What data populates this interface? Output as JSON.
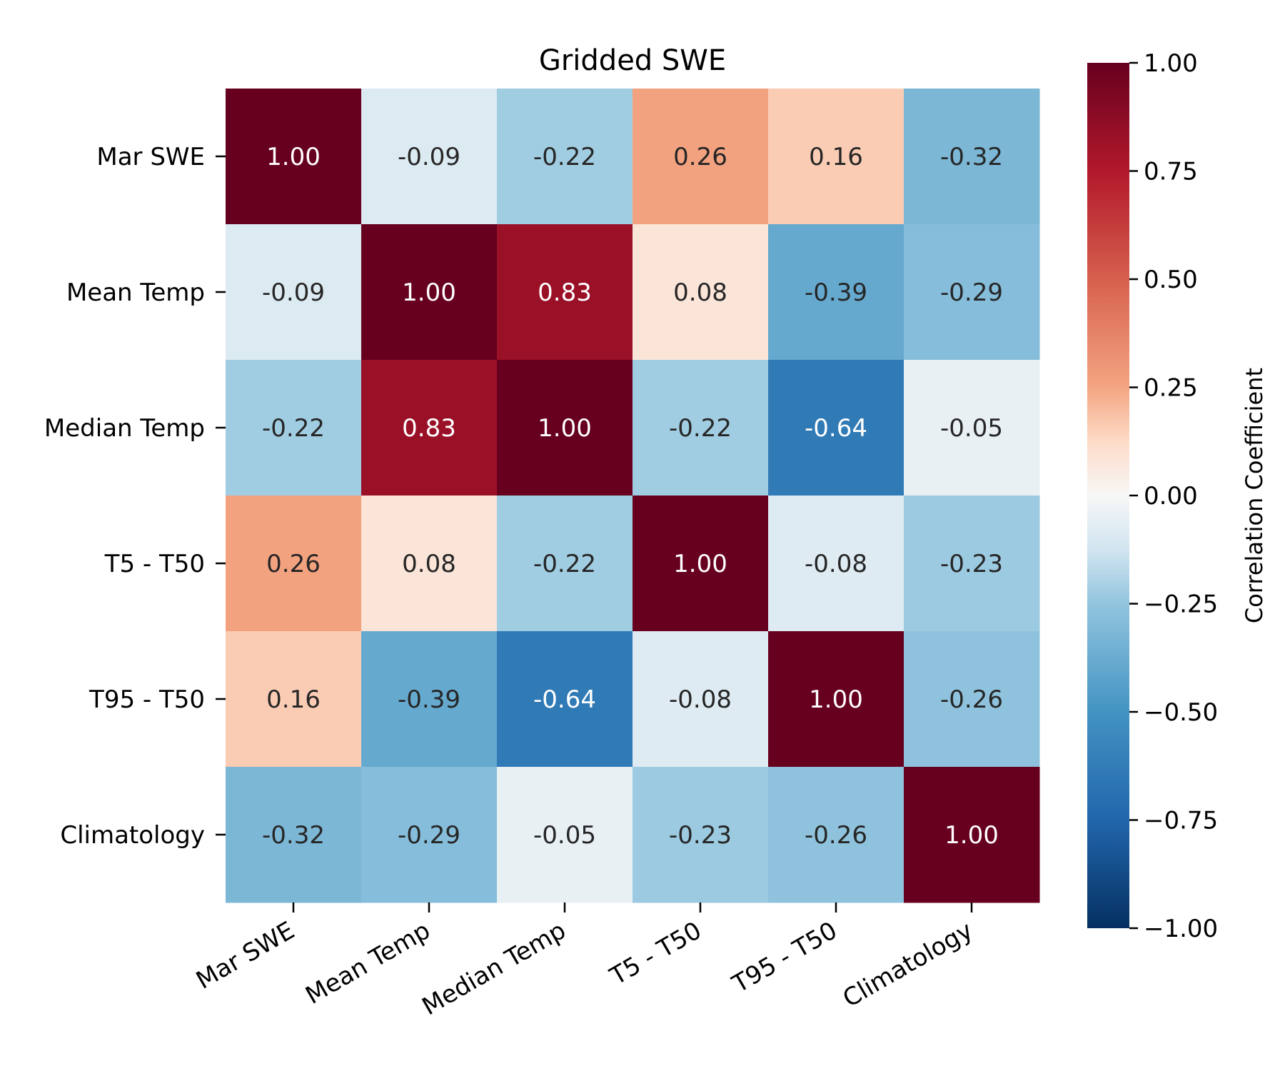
{
  "chart_data": {
    "type": "heatmap",
    "title": "Gridded SWE",
    "row_labels": [
      "Mar SWE",
      "Mean Temp",
      "Median Temp",
      "T5 - T50",
      "T95 - T50",
      "Climatology"
    ],
    "col_labels": [
      "Mar SWE",
      "Mean Temp",
      "Median Temp",
      "T5 - T50",
      "T95 - T50",
      "Climatology"
    ],
    "values": [
      [
        1.0,
        -0.09,
        -0.22,
        0.26,
        0.16,
        -0.32
      ],
      [
        -0.09,
        1.0,
        0.83,
        0.08,
        -0.39,
        -0.29
      ],
      [
        -0.22,
        0.83,
        1.0,
        -0.22,
        -0.64,
        -0.05
      ],
      [
        0.26,
        0.08,
        -0.22,
        1.0,
        -0.08,
        -0.23
      ],
      [
        0.16,
        -0.39,
        -0.64,
        -0.08,
        1.0,
        -0.26
      ],
      [
        -0.32,
        -0.29,
        -0.05,
        -0.23,
        -0.26,
        1.0
      ]
    ],
    "value_format": "2 decimals",
    "colormap": "RdBu_r",
    "vmin": -1.0,
    "vmax": 1.0,
    "colorbar": {
      "label": "Correlation Coefficient",
      "ticks": [
        1.0,
        0.75,
        0.5,
        0.25,
        0.0,
        -0.25,
        -0.5,
        -0.75,
        -1.0
      ],
      "tick_labels": [
        "1.00",
        "0.75",
        "0.50",
        "0.25",
        "0.00",
        "−0.25",
        "−0.50",
        "−0.75",
        "−1.00"
      ],
      "placement": "right"
    },
    "x_tick_rotation": "30 degrees",
    "grid": false
  }
}
